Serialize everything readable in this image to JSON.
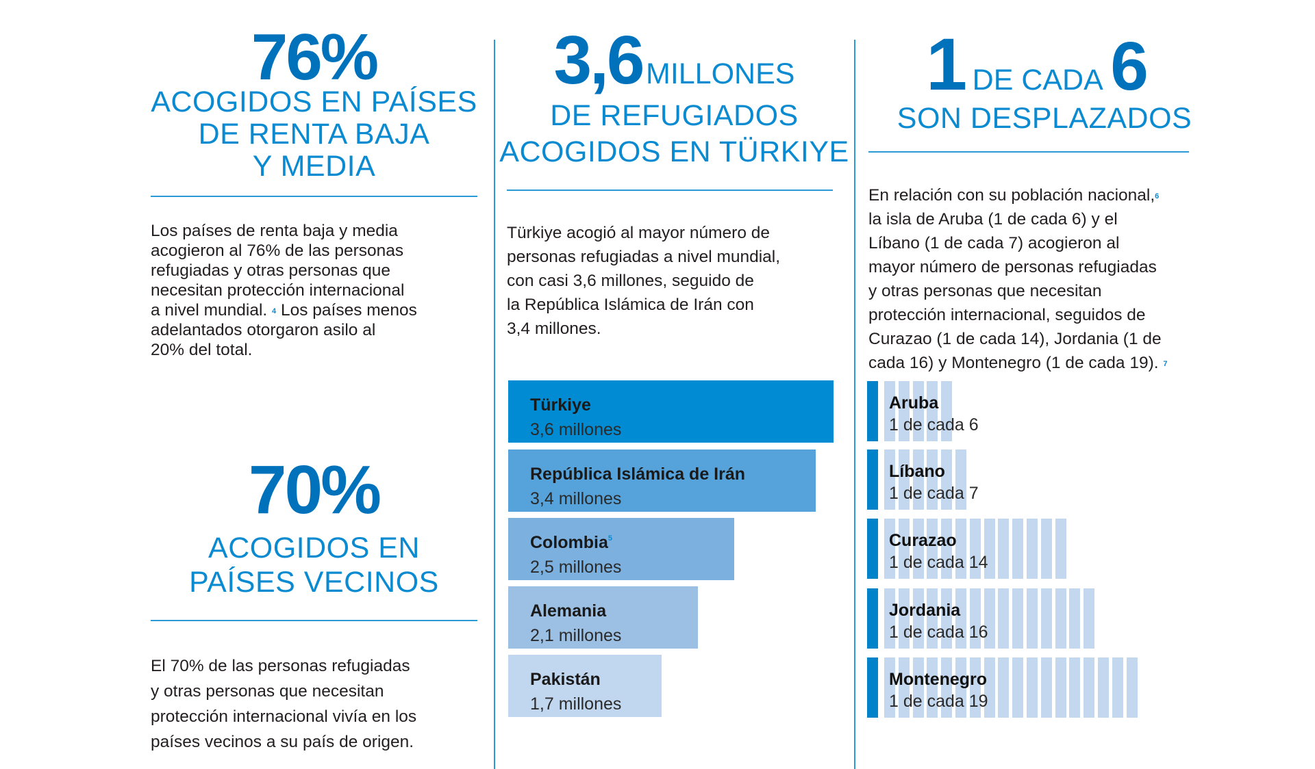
{
  "colors": {
    "big_number": "#0072bc",
    "heading": "#0a8ad0",
    "rule": "#2a9ad6",
    "person_dark": "#0083c9",
    "person_light": "#c3d7ee"
  },
  "col1": {
    "stat1": {
      "number": "76%",
      "heading": [
        "ACOGIDOS EN PAÍSES",
        "DE RENTA BAJA",
        "Y MEDIA"
      ],
      "paragraph": [
        "Los países de renta baja y media",
        "acogieron al 76% de las personas",
        "refugiadas y otras personas que",
        "necesitan protección internacional",
        "a nivel mundial.",
        " Los países menos",
        "adelantados otorgaron asilo al",
        "20% del total."
      ],
      "footnote": "4"
    },
    "stat2": {
      "number": "70%",
      "heading": [
        "ACOGIDOS EN",
        "PAÍSES VECINOS"
      ],
      "paragraph": [
        "El 70% de las personas refugiadas",
        "y otras personas que necesitan",
        "protección internacional vivía en los",
        "países vecinos a su país de origen."
      ]
    }
  },
  "col2": {
    "number": "3,6",
    "unit": "MILLONES",
    "heading": [
      "DE REFUGIADOS",
      "ACOGIDOS EN TÜRKIYE"
    ],
    "paragraph": [
      "Türkiye acogió al mayor número de",
      "personas refugiadas a nivel mundial,",
      "con casi 3,6 millones, seguido de",
      "la República Islámica de Irán con",
      "3,4 millones."
    ]
  },
  "col3": {
    "number_a": "1",
    "middle": "DE CADA",
    "number_b": "6",
    "heading": "SON DESPLAZADOS",
    "paragraph": [
      "En relación con su población nacional,",
      "la isla de Aruba (1 de cada 6) y el",
      "Líbano (1 de cada 7) acogieron al",
      "mayor número de personas refugiadas",
      "y otras personas que necesitan",
      "protección internacional, seguidos de",
      "Curazao (1 de cada 14), Jordania (1 de",
      "cada 16) y Montenegro (1 de cada 19)."
    ],
    "footnote_a": "6",
    "footnote_b": "7"
  },
  "chart_data": [
    {
      "type": "bar",
      "orientation": "horizontal",
      "unit": "millones",
      "categories": [
        "Türkiye",
        "República Islámica de Irán",
        "Colombia",
        "Alemania",
        "Pakistán"
      ],
      "values": [
        3.6,
        3.4,
        2.5,
        2.1,
        1.7
      ],
      "labels": [
        "3,6 millones",
        "3,4 millones",
        "2,5 millones",
        "2,1 millones",
        "1,7 millones"
      ],
      "colors": [
        "#008bd2",
        "#55a3da",
        "#7bb0df",
        "#9cbfe4",
        "#c1d6ef"
      ],
      "footnotes": {
        "Colombia": "5"
      }
    },
    {
      "type": "bar",
      "orientation": "horizontal",
      "encoding": "1 of N persons",
      "categories": [
        "Aruba",
        "Líbano",
        "Curazao",
        "Jordania",
        "Montenegro"
      ],
      "values": [
        6,
        7,
        14,
        16,
        19
      ],
      "labels": [
        "1 de cada 6",
        "1 de cada 7",
        "1 de cada 14",
        "1 de cada 16",
        "1 de cada 19"
      ]
    }
  ]
}
